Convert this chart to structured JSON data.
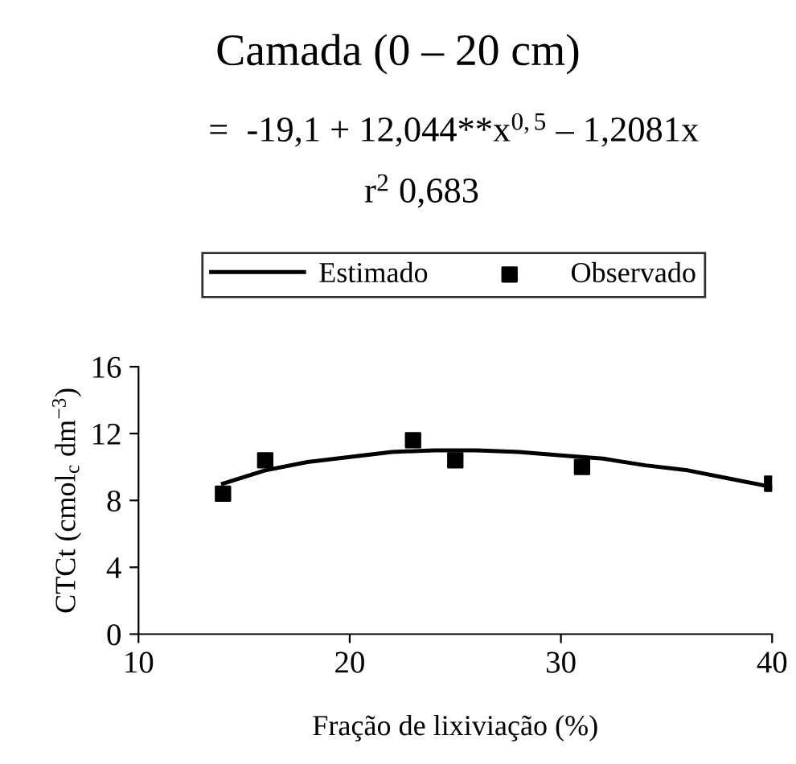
{
  "chart_data": {
    "type": "line",
    "title": "Camada (0 – 20 cm)",
    "subtitle": "=  -19,1 + 12,044**x$^{0,5}$ – 1,2081x",
    "annotations": [
      "r$^{2}$ 0,683"
    ],
    "xlabel": "Fração de lixiviação (%)",
    "ylabel": "CTCt (cmol$_{c}$ dm$^{−3}$)",
    "series": [
      {
        "name": "Estimado",
        "color": "#000000",
        "marker": "none",
        "line_style": "solid",
        "x": [
          14,
          16,
          18,
          20,
          22,
          24,
          26,
          28,
          30,
          32,
          34,
          36,
          38,
          40
        ],
        "values": [
          9.0,
          9.8,
          10.3,
          10.6,
          10.9,
          11.0,
          11.0,
          10.9,
          10.7,
          10.5,
          10.1,
          9.8,
          9.3,
          8.8
        ]
      },
      {
        "name": "Observado",
        "type": "scatter",
        "color": "#000000",
        "marker": "square",
        "x": [
          14,
          16,
          23,
          25,
          31,
          40
        ],
        "values": [
          8.4,
          10.4,
          11.6,
          10.4,
          10.0,
          9.0
        ]
      }
    ],
    "xlim": [
      10,
      40
    ],
    "ylim": [
      0,
      16
    ],
    "xticks": [
      10,
      20,
      30,
      40
    ],
    "yticks": [
      0,
      4,
      8,
      12,
      16
    ],
    "grid": false,
    "legend": "top"
  }
}
